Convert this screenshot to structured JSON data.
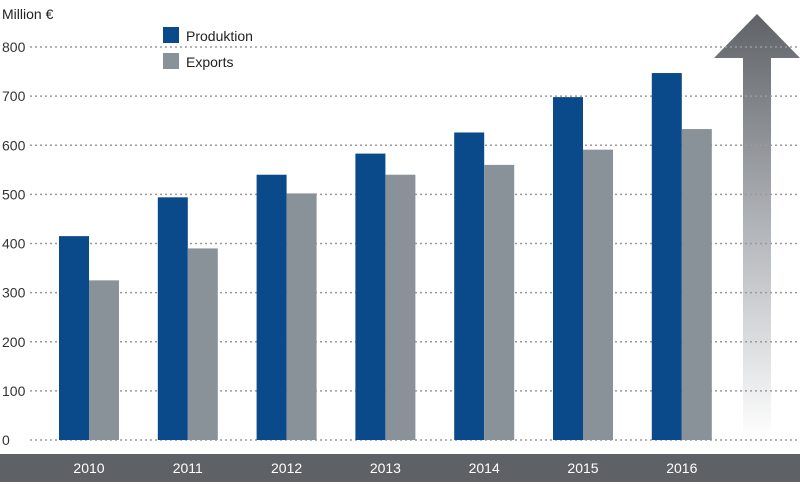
{
  "chart_data": {
    "type": "bar",
    "unit_label": "Million €",
    "categories": [
      "2010",
      "2011",
      "2012",
      "2013",
      "2014",
      "2015",
      "2016"
    ],
    "series": [
      {
        "name": "Produktion",
        "color": "#0a4a8a",
        "values": [
          415,
          494,
          540,
          583,
          626,
          698,
          747
        ]
      },
      {
        "name": "Exports",
        "color": "#8a9299",
        "values": [
          325,
          390,
          502,
          540,
          560,
          591,
          633
        ]
      }
    ],
    "ylim": [
      0,
      800
    ],
    "yticks": [
      0,
      100,
      200,
      300,
      400,
      500,
      600,
      700,
      800
    ],
    "grid": true,
    "legend_position": "top-left",
    "decoration": "upward-arrow-icon"
  }
}
